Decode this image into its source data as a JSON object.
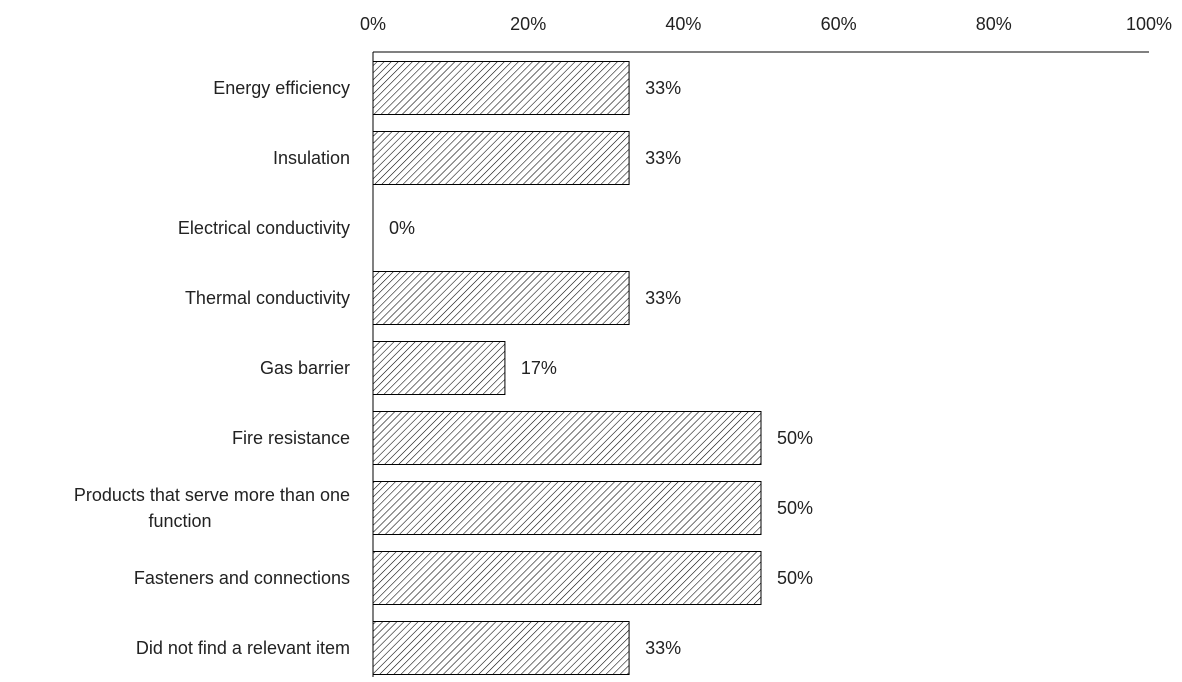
{
  "chart_data": {
    "type": "bar",
    "orientation": "horizontal",
    "title": "",
    "xlabel": "",
    "ylabel": "",
    "xlim": [
      0,
      100
    ],
    "x_ticks": [
      0,
      20,
      40,
      60,
      80,
      100
    ],
    "x_tick_labels": [
      "0%",
      "20%",
      "40%",
      "60%",
      "80%",
      "100%"
    ],
    "x_axis_position": "top",
    "grid": false,
    "legend": "none",
    "bar_fill": "diagonal-hatch",
    "bar_color": "#000000",
    "categories": [
      "Energy efficiency",
      "Insulation",
      "Electrical conductivity",
      "Thermal conductivity",
      "Gas barrier",
      "Fire resistance",
      "Products that serve more than one function",
      "Fasteners and connections",
      "Did not find a relevant item"
    ],
    "values": [
      33,
      33,
      0,
      33,
      17,
      50,
      50,
      50,
      33
    ],
    "data_labels": [
      "33%",
      "33%",
      "0%",
      "33%",
      "17%",
      "50%",
      "50%",
      "50%",
      "33%"
    ]
  }
}
